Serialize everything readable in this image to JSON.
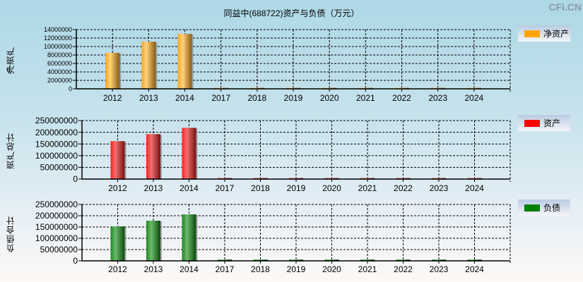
{
  "header": {
    "title": "同益中(688722)资产与负债（万元）",
    "watermark": "CFi.CN"
  },
  "chart_data": [
    {
      "type": "bar",
      "title": "同益中(688722)资产与负债（万元）",
      "ylabel": "净资产",
      "legend": "净资产",
      "color": "#ffa500",
      "categories": [
        "2012",
        "2013",
        "2014",
        "2017",
        "2018",
        "2019",
        "2020",
        "2021",
        "2022",
        "2023",
        "2024"
      ],
      "values": [
        8500000,
        11150000,
        13000000,
        120000,
        120000,
        120000,
        120000,
        120000,
        120000,
        120000,
        120000
      ],
      "ylim": [
        0,
        14000000
      ],
      "yticks": [
        "0",
        "2000000",
        "4000000",
        "6000000",
        "8000000",
        "10000000",
        "12000000",
        "14000000"
      ],
      "grid": true,
      "legend_position": "right"
    },
    {
      "type": "bar",
      "ylabel": "资产总计",
      "legend": "资产",
      "color": "#ff0000",
      "categories": [
        "2012",
        "2013",
        "2014",
        "2017",
        "2018",
        "2019",
        "2020",
        "2021",
        "2022",
        "2023",
        "2024"
      ],
      "values": [
        162000000,
        192000000,
        219000000,
        3000000,
        3000000,
        3000000,
        3000000,
        3000000,
        3000000,
        3000000,
        3000000
      ],
      "ylim": [
        0,
        250000000
      ],
      "yticks": [
        "0",
        "50000000",
        "100000000",
        "150000000",
        "200000000",
        "250000000"
      ],
      "grid": true,
      "legend_position": "right"
    },
    {
      "type": "bar",
      "ylabel": "负债合计",
      "legend": "负债",
      "color": "#008000",
      "categories": [
        "2012",
        "2013",
        "2014",
        "2017",
        "2018",
        "2019",
        "2020",
        "2021",
        "2022",
        "2023",
        "2024"
      ],
      "values": [
        153000000,
        178000000,
        206000000,
        6000000,
        6000000,
        6000000,
        6000000,
        6000000,
        6000000,
        6000000,
        6000000
      ],
      "ylim": [
        0,
        250000000
      ],
      "yticks": [
        "0",
        "50000000",
        "100000000",
        "150000000",
        "200000000",
        "250000000"
      ],
      "grid": true,
      "legend_position": "right"
    }
  ]
}
